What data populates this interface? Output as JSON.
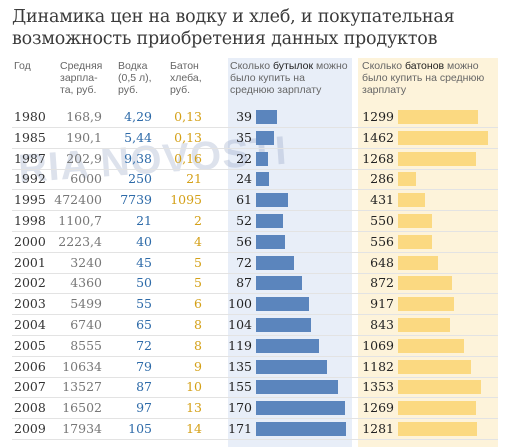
{
  "title": "Динамика цен на водку и хлеб, и покупательная возможность приобретения данных продуктов",
  "watermark": "RIA NOVOSTI",
  "headers": {
    "year": "Год",
    "salary": "Средняя зарпла-та, руб.",
    "vodka": "Водка (0,5 л), руб.",
    "bread": "Батон хлеба, руб.",
    "bottles_pre": "Сколько ",
    "bottles_key": "бутылок",
    "bottles_post": " можно было купить на среднюю зарплату",
    "loaves_pre": "Сколько ",
    "loaves_key": "батонов",
    "loaves_post": " можно было купить на среднюю зарплату"
  },
  "colors": {
    "bottle_bar": "#5b85bd",
    "bottle_panel": "#e8eef8",
    "loaf_bar": "#fbd981",
    "loaf_panel": "#fdf3da"
  },
  "chart_data": {
    "type": "table",
    "columns": [
      "Год",
      "Средняя зарплата, руб.",
      "Водка (0,5 л), руб.",
      "Батон хлеба, руб.",
      "Сколько бутылок можно было купить на среднюю зарплату",
      "Сколько батонов можно было купить на среднюю зарплату"
    ],
    "rows": [
      {
        "year": "1980",
        "salary": "168,9",
        "vodka": "4,29",
        "bread": "0,13",
        "bottles": 39,
        "loaves": 1299
      },
      {
        "year": "1985",
        "salary": "190,1",
        "vodka": "5,44",
        "bread": "0,13",
        "bottles": 35,
        "loaves": 1462
      },
      {
        "year": "1987",
        "salary": "202,9",
        "vodka": "9,38",
        "bread": "0,16",
        "bottles": 22,
        "loaves": 1268
      },
      {
        "year": "1992",
        "salary": "6000",
        "vodka": "250",
        "bread": "21",
        "bottles": 24,
        "loaves": 286
      },
      {
        "year": "1995",
        "salary": "472400",
        "vodka": "7739",
        "bread": "1095",
        "bottles": 61,
        "loaves": 431
      },
      {
        "year": "1998",
        "salary": "1100,7",
        "vodka": "21",
        "bread": "2",
        "bottles": 52,
        "loaves": 550
      },
      {
        "year": "2000",
        "salary": "2223,4",
        "vodka": "40",
        "bread": "4",
        "bottles": 56,
        "loaves": 556
      },
      {
        "year": "2001",
        "salary": "3240",
        "vodka": "45",
        "bread": "5",
        "bottles": 72,
        "loaves": 648
      },
      {
        "year": "2002",
        "salary": "4360",
        "vodka": "50",
        "bread": "5",
        "bottles": 87,
        "loaves": 872
      },
      {
        "year": "2003",
        "salary": "5499",
        "vodka": "55",
        "bread": "6",
        "bottles": 100,
        "loaves": 917
      },
      {
        "year": "2004",
        "salary": "6740",
        "vodka": "65",
        "bread": "8",
        "bottles": 104,
        "loaves": 843
      },
      {
        "year": "2005",
        "salary": "8555",
        "vodka": "72",
        "bread": "8",
        "bottles": 119,
        "loaves": 1069
      },
      {
        "year": "2006",
        "salary": "10634",
        "vodka": "79",
        "bread": "9",
        "bottles": 135,
        "loaves": 1182
      },
      {
        "year": "2007",
        "salary": "13527",
        "vodka": "87",
        "bread": "10",
        "bottles": 155,
        "loaves": 1353
      },
      {
        "year": "2008",
        "salary": "16502",
        "vodka": "97",
        "bread": "13",
        "bottles": 170,
        "loaves": 1269
      },
      {
        "year": "2009",
        "salary": "17934",
        "vodka": "105",
        "bread": "14",
        "bottles": 171,
        "loaves": 1281
      }
    ]
  }
}
